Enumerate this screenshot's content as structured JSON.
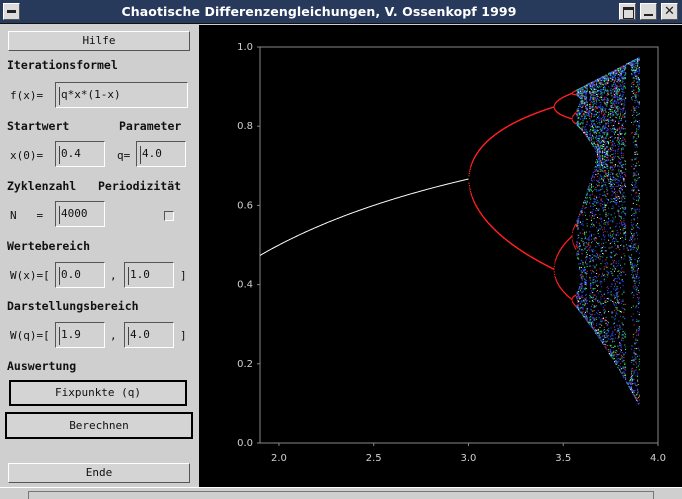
{
  "window": {
    "title": "Chaotische Differenzengleichungen, V. Ossenkopf 1999"
  },
  "left": {
    "help_button": "Hilfe",
    "iteration_header": "Iterationsformel",
    "fx_label": "f(x)=",
    "fx_value": "q*x*(1-x)",
    "startwert_header": "Startwert",
    "parameter_header": "Parameter",
    "x0_label": "x(0)=",
    "x0_value": "0.4",
    "q_label": "q=",
    "q_value": "4.0",
    "zyklen_header": "Zyklenzahl",
    "periodizitaet_header": "Periodizität",
    "n_label": "N   =",
    "n_value": "4000",
    "wertebereich_header": "Wertebereich",
    "wx_label": "W(x)=[",
    "wx_min": "0.0",
    "wx_comma": ",",
    "wx_max": "1.0",
    "wx_close": "]",
    "darstellung_header": "Darstellungsbereich",
    "wq_label": "W(q)=[",
    "wq_min": "1.9",
    "wq_comma": ",",
    "wq_max": "4.0",
    "wq_close": "]",
    "auswertung_header": "Auswertung",
    "fixpunkte_button": "Fixpunkte (q)",
    "berechnen_button": "Berechnen",
    "ende_button": "Ende"
  },
  "chart_data": {
    "type": "scatter",
    "title": "",
    "xlabel": "",
    "ylabel": "",
    "xlim": [
      1.9,
      4.0
    ],
    "ylim": [
      0.0,
      1.0
    ],
    "x_ticks": [
      "2.0",
      "2.5",
      "3.0",
      "3.5",
      "4.0"
    ],
    "y_ticks": [
      "0.0",
      "0.2",
      "0.4",
      "0.6",
      "0.8",
      "1.0"
    ],
    "grid": false,
    "background": "#000000",
    "series": [
      {
        "q_range": [
          1.9,
          3.0
        ],
        "formula": "x* = 1 - 1/q",
        "color": "#ffffff"
      },
      {
        "q_range": [
          3.0,
          3.45
        ],
        "formula": "period-2 cycle",
        "color": "#ff2020"
      },
      {
        "q_range": [
          3.45,
          3.57
        ],
        "formula": "period-4 cycle",
        "color": "#ff2020"
      },
      {
        "q_range": [
          3.57,
          3.9
        ],
        "formula": "chaotic band",
        "colors": [
          "#3050ff",
          "#30ff60",
          "#ff2020",
          "#ffffff"
        ]
      }
    ]
  }
}
